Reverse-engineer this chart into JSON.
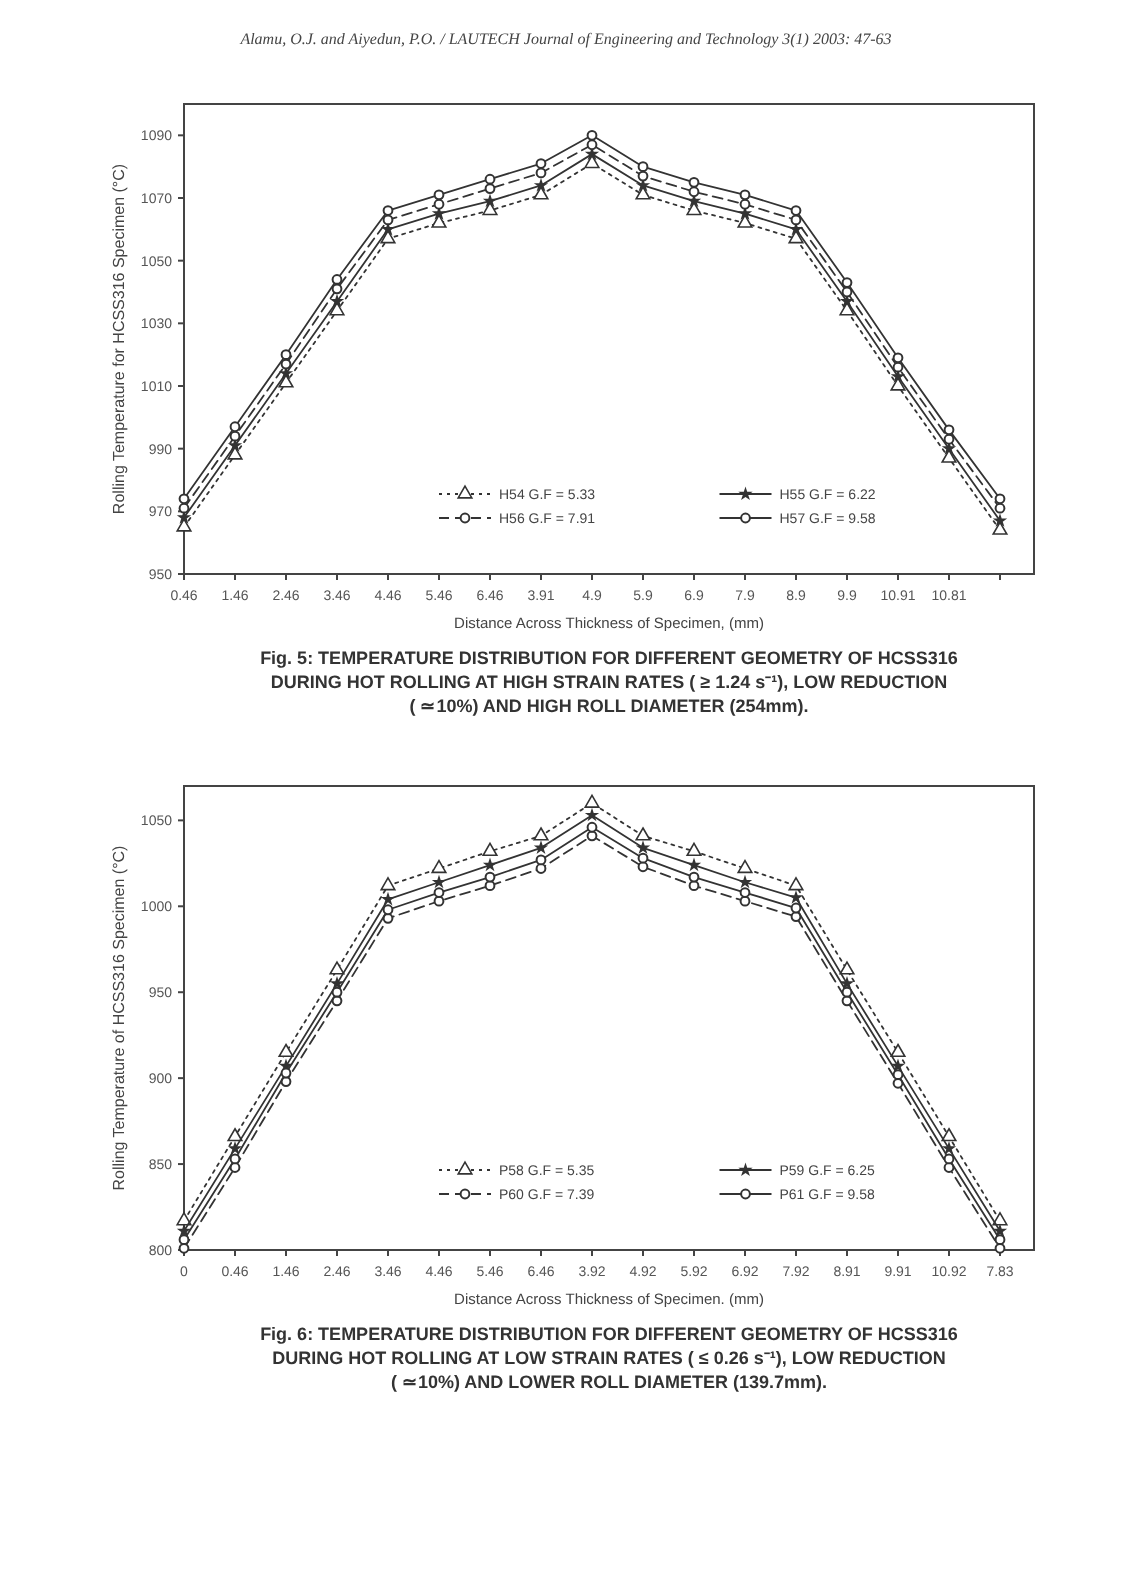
{
  "chart_data": [
    {
      "type": "line",
      "title": "Fig. 5: TEMPERATURE DISTRIBUTION FOR DIFFERENT GEOMETRY OF HCSS316 DURING HOT ROLLING AT HIGH STRAIN RATES ( ≥ 1.24 s⁻¹), LOW REDUCTION ( ≃10%) AND HIGH ROLL DIAMETER (254mm).",
      "xlabel": "Distance Across Thickness of Specimen, (mm)",
      "ylabel": "Rolling Temperature for HCSS316 Specimen (°C)",
      "annotations": [
        "Alamu, O.J. and Aiyedun, P.O. / LAUTECH Journal of Engineering and Technology 3(1) 2003: 47-63"
      ],
      "categories": [
        "0.46",
        "1.46",
        "2.46",
        "3.46",
        "4.46",
        "5.46",
        "6.46",
        "3.91",
        "4.9",
        "5.9",
        "6.9",
        "7.9",
        "8.9",
        "9.9",
        "10.91",
        "10.81",
        null
      ],
      "ylim": [
        950,
        1100
      ],
      "yticks": [
        950,
        970,
        990,
        1010,
        1030,
        1050,
        1070,
        1090
      ],
      "grid": false,
      "legend": "bottom",
      "series": [
        {
          "name": "H54 G.F = 5.33",
          "color": "#333333",
          "marker": "triangle",
          "line_style": "dotted",
          "values": [
            965,
            988,
            1011,
            1034,
            1057,
            1062,
            1066,
            1071,
            1081,
            1071,
            1066,
            1062,
            1057,
            1034,
            1010,
            987,
            964
          ]
        },
        {
          "name": "H55 G.F = 6.22",
          "color": "#333333",
          "marker": "star",
          "line_style": "solid",
          "values": [
            968,
            991,
            1014,
            1037,
            1060,
            1065,
            1069,
            1074,
            1084,
            1074,
            1069,
            1065,
            1060,
            1037,
            1013,
            990,
            967
          ]
        },
        {
          "name": "H56 G.F = 7.91",
          "color": "#333333",
          "marker": "circle",
          "line_style": "dashed",
          "values": [
            971,
            994,
            1017,
            1041,
            1063,
            1068,
            1073,
            1078,
            1087,
            1077,
            1072,
            1068,
            1063,
            1040,
            1016,
            993,
            971
          ]
        },
        {
          "name": "H57 G.F = 9.58",
          "color": "#333333",
          "marker": "circle",
          "line_style": "solid",
          "values": [
            974,
            997,
            1020,
            1044,
            1066,
            1071,
            1076,
            1081,
            1090,
            1080,
            1075,
            1071,
            1066,
            1043,
            1019,
            996,
            974
          ]
        }
      ]
    },
    {
      "type": "line",
      "title": "Fig. 6: TEMPERATURE DISTRIBUTION FOR DIFFERENT GEOMETRY OF HCSS316 DURING HOT ROLLING AT LOW STRAIN RATES ( ≤ 0.26 s⁻¹), LOW REDUCTION ( ≃10%) AND LOWER ROLL DIAMETER (139.7mm).",
      "xlabel": "Distance Across Thickness of Specimen. (mm)",
      "ylabel": "Rolling Temperature of HCSS316 Specimen (°C)",
      "categories": [
        "0",
        "0.46",
        "1.46",
        "2.46",
        "3.46",
        "4.46",
        "5.46",
        "6.46",
        "3.92",
        "4.92",
        "5.92",
        "6.92",
        "7.92",
        "8.91",
        "9.91",
        "10.92",
        "7.83"
      ],
      "ylim": [
        800,
        1070
      ],
      "yticks": [
        800,
        850,
        900,
        950,
        1000,
        1050
      ],
      "grid": false,
      "legend": "bottom",
      "series": [
        {
          "name": "P58 G.F = 5.35",
          "color": "#333333",
          "marker": "triangle",
          "line_style": "dotted",
          "values": [
            817,
            866,
            915,
            963,
            1012,
            1022,
            1032,
            1041,
            1060,
            1041,
            1032,
            1022,
            1012,
            963,
            915,
            866,
            817
          ]
        },
        {
          "name": "P59 G.F = 6.25",
          "color": "#333333",
          "marker": "star",
          "line_style": "solid",
          "values": [
            811,
            859,
            907,
            955,
            1004,
            1014,
            1024,
            1034,
            1053,
            1034,
            1024,
            1014,
            1005,
            955,
            907,
            859,
            811
          ]
        },
        {
          "name": "P60 G.F = 7.39",
          "color": "#333333",
          "marker": "circle",
          "line_style": "dashed",
          "values": [
            801,
            848,
            898,
            945,
            993,
            1003,
            1012,
            1022,
            1041,
            1023,
            1012,
            1003,
            994,
            945,
            897,
            848,
            801
          ]
        },
        {
          "name": "P61 G.F = 9.58",
          "color": "#333333",
          "marker": "circle",
          "line_style": "solid",
          "values": [
            806,
            853,
            903,
            950,
            998,
            1008,
            1017,
            1027,
            1046,
            1028,
            1017,
            1008,
            999,
            950,
            902,
            853,
            806
          ]
        }
      ]
    }
  ]
}
